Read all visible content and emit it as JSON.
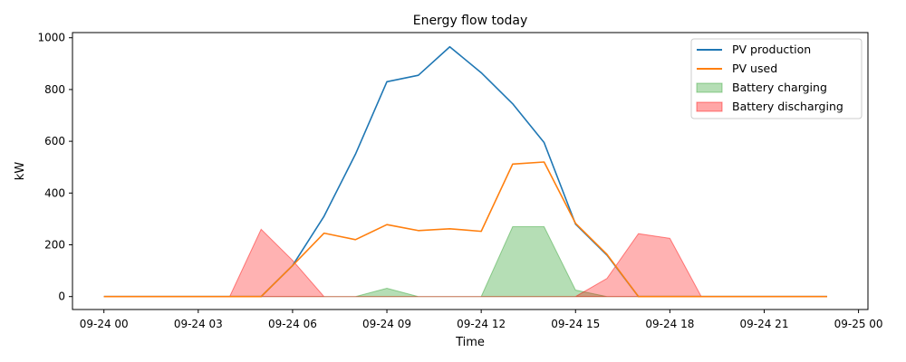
{
  "chart_data": {
    "type": "line",
    "title": "Energy flow today",
    "xlabel": "Time",
    "ylabel": "kW",
    "x": [
      0,
      1,
      2,
      3,
      4,
      5,
      6,
      7,
      8,
      9,
      10,
      11,
      12,
      13,
      14,
      15,
      16,
      17,
      18,
      19,
      20,
      21,
      22,
      23
    ],
    "x_unit": "hour of 2024-09-24",
    "xlim": [
      -1.0,
      24.3
    ],
    "ylim": [
      -50,
      1020
    ],
    "yticks": [
      0,
      200,
      400,
      600,
      800,
      1000
    ],
    "xticks": [
      0,
      3,
      6,
      9,
      12,
      15,
      18,
      21,
      24
    ],
    "xtick_labels": [
      "09-24 00",
      "09-24 03",
      "09-24 06",
      "09-24 09",
      "09-24 12",
      "09-24 15",
      "09-24 18",
      "09-24 21",
      "09-25 00"
    ],
    "grid": false,
    "legend_position": "top-right",
    "series": [
      {
        "name": "PV production",
        "kind": "line",
        "color": "#1f77b4",
        "values": [
          0,
          0,
          0,
          0,
          0,
          0,
          120,
          310,
          550,
          830,
          855,
          965,
          865,
          745,
          595,
          280,
          160,
          0,
          0,
          0,
          0,
          0,
          0,
          0
        ]
      },
      {
        "name": "PV used",
        "kind": "line",
        "color": "#ff7f0e",
        "values": [
          0,
          0,
          0,
          0,
          0,
          0,
          120,
          245,
          220,
          278,
          255,
          262,
          252,
          512,
          520,
          283,
          163,
          0,
          0,
          0,
          0,
          0,
          0,
          0
        ]
      },
      {
        "name": "Battery charging",
        "kind": "area",
        "color": "#2ca02c",
        "values": [
          0,
          0,
          0,
          0,
          0,
          0,
          0,
          0,
          0,
          32,
          0,
          0,
          0,
          270,
          270,
          25,
          0,
          0,
          0,
          0,
          0,
          0,
          0,
          0
        ]
      },
      {
        "name": "Battery discharging",
        "kind": "area",
        "color": "#ff0000",
        "values": [
          0,
          0,
          0,
          0,
          0,
          260,
          140,
          0,
          0,
          0,
          0,
          0,
          0,
          0,
          0,
          0,
          70,
          243,
          225,
          0,
          0,
          0,
          0,
          0
        ]
      }
    ]
  }
}
